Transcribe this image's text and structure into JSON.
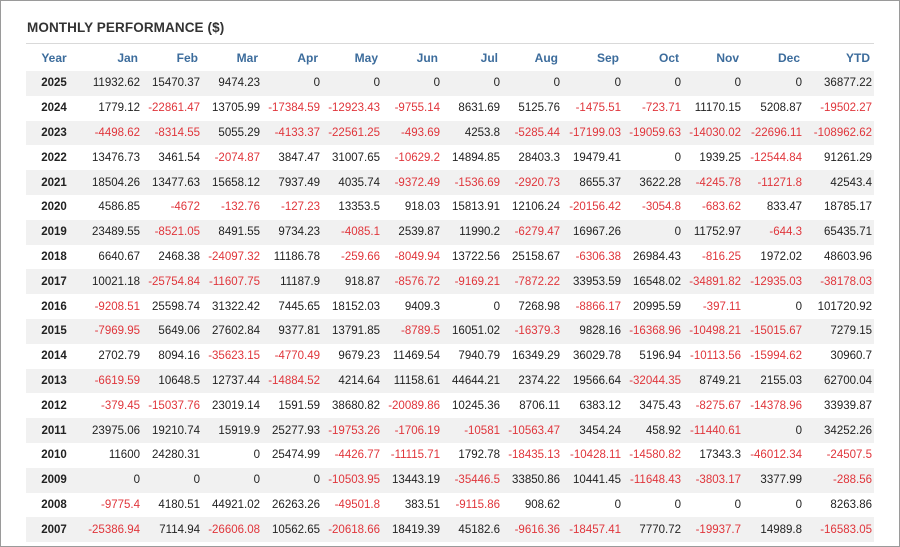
{
  "title": "MONTHLY PERFORMANCE ($)",
  "columns": [
    "Year",
    "Jan",
    "Feb",
    "Mar",
    "Apr",
    "May",
    "Jun",
    "Jul",
    "Aug",
    "Sep",
    "Oct",
    "Nov",
    "Dec",
    "YTD"
  ],
  "rows": [
    [
      "2025",
      "11932.62",
      "15470.37",
      "9474.23",
      "0",
      "0",
      "0",
      "0",
      "0",
      "0",
      "0",
      "0",
      "0",
      "36877.22"
    ],
    [
      "2024",
      "1779.12",
      "-22861.47",
      "13705.99",
      "-17384.59",
      "-12923.43",
      "-9755.14",
      "8631.69",
      "5125.76",
      "-1475.51",
      "-723.71",
      "11170.15",
      "5208.87",
      "-19502.27"
    ],
    [
      "2023",
      "-4498.62",
      "-8314.55",
      "5055.29",
      "-4133.37",
      "-22561.25",
      "-493.69",
      "4253.8",
      "-5285.44",
      "-17199.03",
      "-19059.63",
      "-14030.02",
      "-22696.11",
      "-108962.62"
    ],
    [
      "2022",
      "13476.73",
      "3461.54",
      "-2074.87",
      "3847.47",
      "31007.65",
      "-10629.2",
      "14894.85",
      "28403.3",
      "19479.41",
      "0",
      "1939.25",
      "-12544.84",
      "91261.29"
    ],
    [
      "2021",
      "18504.26",
      "13477.63",
      "15658.12",
      "7937.49",
      "4035.74",
      "-9372.49",
      "-1536.69",
      "-2920.73",
      "8655.37",
      "3622.28",
      "-4245.78",
      "-11271.8",
      "42543.4"
    ],
    [
      "2020",
      "4586.85",
      "-4672",
      "-132.76",
      "-127.23",
      "13353.5",
      "918.03",
      "15813.91",
      "12106.24",
      "-20156.42",
      "-3054.8",
      "-683.62",
      "833.47",
      "18785.17"
    ],
    [
      "2019",
      "23489.55",
      "-8521.05",
      "8491.55",
      "9734.23",
      "-4085.1",
      "2539.87",
      "11990.2",
      "-6279.47",
      "16967.26",
      "0",
      "11752.97",
      "-644.3",
      "65435.71"
    ],
    [
      "2018",
      "6640.67",
      "2468.38",
      "-24097.32",
      "11186.78",
      "-259.66",
      "-8049.94",
      "13722.56",
      "25158.67",
      "-6306.38",
      "26984.43",
      "-816.25",
      "1972.02",
      "48603.96"
    ],
    [
      "2017",
      "10021.18",
      "-25754.84",
      "-11607.75",
      "11187.9",
      "918.87",
      "-8576.72",
      "-9169.21",
      "-7872.22",
      "33953.59",
      "16548.02",
      "-34891.82",
      "-12935.03",
      "-38178.03"
    ],
    [
      "2016",
      "-9208.51",
      "25598.74",
      "31322.42",
      "7445.65",
      "18152.03",
      "9409.3",
      "0",
      "7268.98",
      "-8866.17",
      "20995.59",
      "-397.11",
      "0",
      "101720.92"
    ],
    [
      "2015",
      "-7969.95",
      "5649.06",
      "27602.84",
      "9377.81",
      "13791.85",
      "-8789.5",
      "16051.02",
      "-16379.3",
      "9828.16",
      "-16368.96",
      "-10498.21",
      "-15015.67",
      "7279.15"
    ],
    [
      "2014",
      "2702.79",
      "8094.16",
      "-35623.15",
      "-4770.49",
      "9679.23",
      "11469.54",
      "7940.79",
      "16349.29",
      "36029.78",
      "5196.94",
      "-10113.56",
      "-15994.62",
      "30960.7"
    ],
    [
      "2013",
      "-6619.59",
      "10648.5",
      "12737.44",
      "-14884.52",
      "4214.64",
      "11158.61",
      "44644.21",
      "2374.22",
      "19566.64",
      "-32044.35",
      "8749.21",
      "2155.03",
      "62700.04"
    ],
    [
      "2012",
      "-379.45",
      "-15037.76",
      "23019.14",
      "1591.59",
      "38680.82",
      "-20089.86",
      "10245.36",
      "8706.11",
      "6383.12",
      "3475.43",
      "-8275.67",
      "-14378.96",
      "33939.87"
    ],
    [
      "2011",
      "23975.06",
      "19210.74",
      "15919.9",
      "25277.93",
      "-19753.26",
      "-1706.19",
      "-10581",
      "-10563.47",
      "3454.24",
      "458.92",
      "-11440.61",
      "0",
      "34252.26"
    ],
    [
      "2010",
      "11600",
      "24280.31",
      "0",
      "25474.99",
      "-4426.77",
      "-11115.71",
      "1792.78",
      "-18435.13",
      "-10428.11",
      "-14580.82",
      "17343.3",
      "-46012.34",
      "-24507.5"
    ],
    [
      "2009",
      "0",
      "0",
      "0",
      "0",
      "-10503.95",
      "13443.19",
      "-35446.5",
      "33850.86",
      "10441.45",
      "-11648.43",
      "-3803.17",
      "3377.99",
      "-288.56"
    ],
    [
      "2008",
      "-9775.4",
      "4180.51",
      "44921.02",
      "26263.26",
      "-49501.8",
      "383.51",
      "-9115.86",
      "908.62",
      "0",
      "0",
      "0",
      "0",
      "8263.86"
    ],
    [
      "2007",
      "-25386.94",
      "7114.94",
      "-26606.08",
      "10562.65",
      "-20618.66",
      "18419.39",
      "45182.6",
      "-9616.36",
      "-18457.41",
      "7770.72",
      "-19937.7",
      "14989.8",
      "-16583.05"
    ]
  ],
  "colors": {
    "header_text": "#3c6c9c",
    "negative": "#e0353b",
    "positive": "#222222",
    "stripe": "#f1f1f1"
  }
}
